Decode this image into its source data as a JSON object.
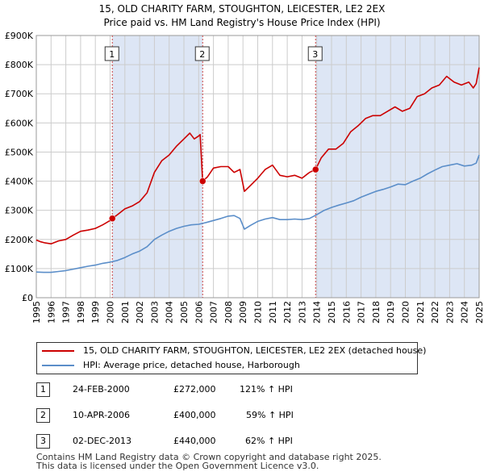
{
  "title_line1": "15, OLD CHARITY FARM, STOUGHTON, LEICESTER, LE2 2EX",
  "title_line2": "Price paid vs. HM Land Registry's House Price Index (HPI)",
  "colors": {
    "price_line": "#cc0000",
    "hpi_line": "#5b8ec9",
    "shade": "#dde6f5",
    "vline": "#cc4444",
    "grid": "#cccccc"
  },
  "chart_data": {
    "type": "line",
    "title": "15, OLD CHARITY FARM, STOUGHTON, LEICESTER, LE2 2EX — Price paid vs. HM Land Registry's House Price Index (HPI)",
    "xlabel": "",
    "ylabel": "",
    "xlim": [
      1995.0,
      2025.0
    ],
    "ylim": [
      0,
      900000
    ],
    "y_ticks": [
      0,
      100000,
      200000,
      300000,
      400000,
      500000,
      600000,
      700000,
      800000,
      900000
    ],
    "y_tick_labels": [
      "£0",
      "£100K",
      "£200K",
      "£300K",
      "£400K",
      "£500K",
      "£600K",
      "£700K",
      "£800K",
      "£900K"
    ],
    "x_ticks": [
      1995,
      1996,
      1997,
      1998,
      1999,
      2000,
      2001,
      2002,
      2003,
      2004,
      2005,
      2006,
      2007,
      2008,
      2009,
      2010,
      2011,
      2012,
      2013,
      2014,
      2015,
      2016,
      2017,
      2018,
      2019,
      2020,
      2021,
      2022,
      2023,
      2024,
      2025
    ],
    "x_tick_labels": [
      "1995",
      "1996",
      "1997",
      "1998",
      "1999",
      "2000",
      "2001",
      "2002",
      "2003",
      "2004",
      "2005",
      "2006",
      "2007",
      "2008",
      "2009",
      "2010",
      "2011",
      "2012",
      "2013",
      "2014",
      "2015",
      "2016",
      "2017",
      "2018",
      "2019",
      "2020",
      "2021",
      "2022",
      "2023",
      "2024",
      "2025"
    ],
    "grid": true,
    "shaded_periods": [
      [
        2000.15,
        2006.27
      ],
      [
        2013.92,
        2025.0
      ]
    ],
    "series": [
      {
        "name": "15, OLD CHARITY FARM, STOUGHTON, LEICESTER, LE2 2EX (detached house)",
        "color": "#cc0000",
        "x": [
          1995.0,
          1995.3,
          1995.6,
          1996.0,
          1996.5,
          1997.0,
          1997.5,
          1998.0,
          1998.5,
          1999.0,
          1999.5,
          2000.0,
          2000.15,
          2000.5,
          2001.0,
          2001.5,
          2002.0,
          2002.5,
          2003.0,
          2003.5,
          2004.0,
          2004.5,
          2005.0,
          2005.4,
          2005.7,
          2006.0,
          2006.1,
          2006.27,
          2006.6,
          2007.0,
          2007.5,
          2008.0,
          2008.4,
          2008.8,
          2009.1,
          2009.5,
          2010.0,
          2010.5,
          2011.0,
          2011.5,
          2012.0,
          2012.5,
          2013.0,
          2013.5,
          2013.92,
          2014.3,
          2014.8,
          2015.3,
          2015.8,
          2016.3,
          2016.8,
          2017.3,
          2017.8,
          2018.3,
          2018.8,
          2019.3,
          2019.8,
          2020.3,
          2020.8,
          2021.3,
          2021.8,
          2022.3,
          2022.8,
          2023.3,
          2023.8,
          2024.3,
          2024.6,
          2024.8,
          2025.0
        ],
        "y": [
          198000,
          192000,
          188000,
          185000,
          195000,
          200000,
          215000,
          228000,
          232000,
          238000,
          250000,
          265000,
          272000,
          285000,
          305000,
          315000,
          330000,
          360000,
          430000,
          470000,
          490000,
          520000,
          545000,
          565000,
          545000,
          555000,
          560000,
          400000,
          415000,
          445000,
          450000,
          450000,
          430000,
          440000,
          365000,
          385000,
          410000,
          440000,
          455000,
          420000,
          415000,
          420000,
          410000,
          430000,
          440000,
          480000,
          510000,
          510000,
          530000,
          570000,
          590000,
          615000,
          625000,
          625000,
          640000,
          655000,
          640000,
          650000,
          690000,
          700000,
          720000,
          730000,
          760000,
          740000,
          730000,
          740000,
          720000,
          735000,
          790000
        ]
      },
      {
        "name": "HPI: Average price, detached house, Harborough",
        "color": "#5b8ec9",
        "x": [
          1995.0,
          1995.5,
          1996.0,
          1996.5,
          1997.0,
          1997.5,
          1998.0,
          1998.5,
          1999.0,
          1999.5,
          2000.0,
          2000.5,
          2001.0,
          2001.5,
          2002.0,
          2002.5,
          2003.0,
          2003.5,
          2004.0,
          2004.5,
          2005.0,
          2005.5,
          2006.0,
          2006.5,
          2007.0,
          2007.5,
          2008.0,
          2008.4,
          2008.8,
          2009.1,
          2009.5,
          2010.0,
          2010.5,
          2011.0,
          2011.5,
          2012.0,
          2012.5,
          2013.0,
          2013.5,
          2014.0,
          2014.5,
          2015.0,
          2015.5,
          2016.0,
          2016.5,
          2017.0,
          2017.5,
          2018.0,
          2018.5,
          2019.0,
          2019.5,
          2020.0,
          2020.5,
          2021.0,
          2021.5,
          2022.0,
          2022.5,
          2023.0,
          2023.5,
          2024.0,
          2024.5,
          2024.8,
          2025.0
        ],
        "y": [
          88000,
          87000,
          87000,
          90000,
          93000,
          98000,
          103000,
          108000,
          112000,
          118000,
          122000,
          128000,
          138000,
          150000,
          160000,
          175000,
          200000,
          215000,
          228000,
          238000,
          245000,
          250000,
          252000,
          258000,
          265000,
          272000,
          280000,
          282000,
          272000,
          235000,
          248000,
          262000,
          270000,
          275000,
          268000,
          268000,
          270000,
          268000,
          272000,
          285000,
          300000,
          310000,
          318000,
          325000,
          333000,
          345000,
          355000,
          365000,
          372000,
          380000,
          390000,
          388000,
          400000,
          410000,
          425000,
          438000,
          450000,
          455000,
          460000,
          452000,
          455000,
          462000,
          490000
        ]
      }
    ],
    "sale_markers": [
      {
        "label": "1",
        "x": 2000.15,
        "y": 272000,
        "color": "#cc0000"
      },
      {
        "label": "2",
        "x": 2006.27,
        "y": 400000,
        "color": "#cc0000"
      },
      {
        "label": "3",
        "x": 2013.92,
        "y": 440000,
        "color": "#cc0000"
      }
    ],
    "legend_position": "below-chart"
  },
  "legend": {
    "price_label": "15, OLD CHARITY FARM, STOUGHTON, LEICESTER, LE2 2EX (detached house)",
    "hpi_label": "HPI: Average price, detached house, Harborough"
  },
  "transactions": [
    {
      "num": "1",
      "date": "24-FEB-2000",
      "price": "£272,000",
      "hpi": "121% ↑ HPI"
    },
    {
      "num": "2",
      "date": "10-APR-2006",
      "price": "£400,000",
      "hpi": "59% ↑ HPI"
    },
    {
      "num": "3",
      "date": "02-DEC-2013",
      "price": "£440,000",
      "hpi": "62% ↑ HPI"
    }
  ],
  "footer": {
    "line1": "Contains HM Land Registry data © Crown copyright and database right 2025.",
    "line2": "This data is licensed under the Open Government Licence v3.0."
  }
}
